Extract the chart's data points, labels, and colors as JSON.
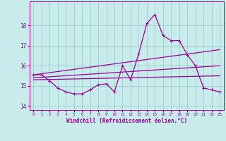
{
  "xlabel": "Windchill (Refroidissement éolien,°C)",
  "xlim": [
    -0.5,
    23.5
  ],
  "ylim": [
    13.8,
    19.2
  ],
  "yticks": [
    14,
    15,
    16,
    17,
    18
  ],
  "xticks": [
    0,
    1,
    2,
    3,
    4,
    5,
    6,
    7,
    8,
    9,
    10,
    11,
    12,
    13,
    14,
    15,
    16,
    17,
    18,
    19,
    20,
    21,
    22,
    23
  ],
  "bg_color": "#c8ecec",
  "grid_color": "#a0cccc",
  "line_color": "#990099",
  "line1_x": [
    0,
    1,
    2,
    3,
    4,
    5,
    6,
    7,
    8,
    9,
    10,
    11,
    12,
    13,
    14,
    15,
    16,
    17,
    18,
    19,
    20,
    21,
    22,
    23
  ],
  "line1_y": [
    15.55,
    15.55,
    15.25,
    14.9,
    14.7,
    14.6,
    14.6,
    14.8,
    15.05,
    15.1,
    14.7,
    16.0,
    15.3,
    16.6,
    18.1,
    18.55,
    17.5,
    17.25,
    17.25,
    16.55,
    16.0,
    14.9,
    14.8,
    14.7
  ],
  "line2_x": [
    0,
    23
  ],
  "line2_y": [
    15.55,
    16.8
  ],
  "line3_x": [
    0,
    23
  ],
  "line3_y": [
    15.4,
    16.0
  ],
  "line4_x": [
    0,
    23
  ],
  "line4_y": [
    15.3,
    15.5
  ],
  "marker": "P",
  "markersize": 2.5,
  "linewidth": 0.9
}
